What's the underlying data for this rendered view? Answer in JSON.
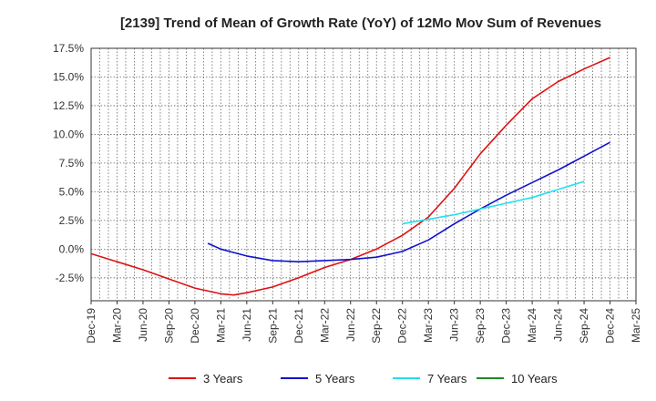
{
  "chart_data": {
    "type": "line",
    "title": "[2139]  Trend of Mean of Growth Rate (YoY) of 12Mo Mov Sum of Revenues",
    "xlabel": "",
    "ylabel": "",
    "ylim": [
      -4.5,
      17.5
    ],
    "grid": true,
    "legend_position": "bottom",
    "x_tick_labels": [
      "Dec-19",
      "Mar-20",
      "Jun-20",
      "Sep-20",
      "Dec-20",
      "Mar-21",
      "Jun-21",
      "Sep-21",
      "Dec-21",
      "Mar-22",
      "Jun-22",
      "Sep-22",
      "Dec-22",
      "Mar-23",
      "Jun-23",
      "Sep-23",
      "Dec-23",
      "Mar-24",
      "Jun-24",
      "Sep-24",
      "Dec-24",
      "Mar-25"
    ],
    "y_ticks": [
      17.5,
      15.0,
      12.5,
      10.0,
      7.5,
      5.0,
      2.5,
      0.0,
      -2.5
    ],
    "y_tick_labels": [
      "17.5%",
      "15.0%",
      "12.5%",
      "10.0%",
      "7.5%",
      "5.0%",
      "2.5%",
      "0.0%",
      "-2.5%"
    ],
    "series": [
      {
        "name": "3 Years",
        "color": "#dd1111",
        "points": [
          [
            0,
            -0.4
          ],
          [
            1,
            -1.1
          ],
          [
            2,
            -1.8
          ],
          [
            3,
            -2.6
          ],
          [
            4,
            -3.4
          ],
          [
            5,
            -3.9
          ],
          [
            5.5,
            -4.0
          ],
          [
            6,
            -3.8
          ],
          [
            7,
            -3.3
          ],
          [
            8,
            -2.5
          ],
          [
            9,
            -1.6
          ],
          [
            10,
            -0.9
          ],
          [
            11,
            0.0
          ],
          [
            12,
            1.2
          ],
          [
            13,
            2.8
          ],
          [
            14,
            5.3
          ],
          [
            15,
            8.3
          ],
          [
            16,
            10.8
          ],
          [
            17,
            13.1
          ],
          [
            18,
            14.6
          ],
          [
            19,
            15.7
          ],
          [
            20,
            16.7
          ]
        ]
      },
      {
        "name": "5 Years",
        "color": "#1111cc",
        "points": [
          [
            4.5,
            0.5
          ],
          [
            5,
            0.0
          ],
          [
            6,
            -0.6
          ],
          [
            7,
            -1.0
          ],
          [
            8,
            -1.1
          ],
          [
            9,
            -1.0
          ],
          [
            10,
            -0.9
          ],
          [
            11,
            -0.7
          ],
          [
            12,
            -0.2
          ],
          [
            13,
            0.8
          ],
          [
            14,
            2.2
          ],
          [
            15,
            3.5
          ],
          [
            16,
            4.7
          ],
          [
            17,
            5.8
          ],
          [
            18,
            6.9
          ],
          [
            19,
            8.1
          ],
          [
            20,
            9.3
          ]
        ]
      },
      {
        "name": "7 Years",
        "color": "#22e0ee",
        "points": [
          [
            12,
            2.2
          ],
          [
            13,
            2.6
          ],
          [
            14,
            3.0
          ],
          [
            15,
            3.5
          ],
          [
            16,
            4.0
          ],
          [
            17,
            4.5
          ],
          [
            18,
            5.2
          ],
          [
            19,
            5.9
          ]
        ]
      },
      {
        "name": "10 Years",
        "color": "#228822",
        "points": []
      }
    ]
  }
}
